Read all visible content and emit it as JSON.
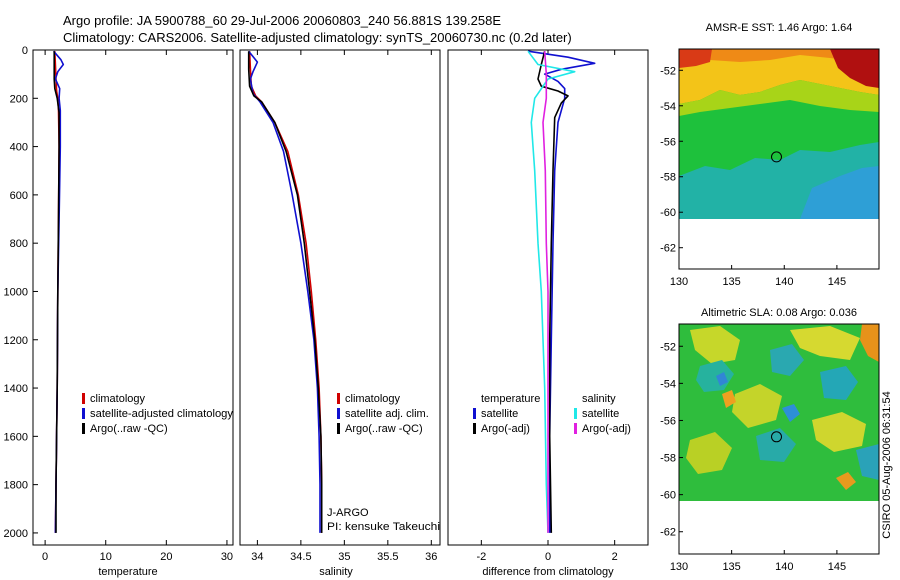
{
  "header": {
    "line1": "Argo profile: JA 5900788_60 29-Jul-2006 20060803_240 56.881S 139.258E",
    "line2": "Climatology: CARS2006. Satellite-adjusted climatology: synTS_20060730.nc (0.2d later)"
  },
  "credit": "CSIRO 05-Aug-2006 06:31:54",
  "colors": {
    "climatology": "#d00000",
    "satellite": "#1010d0",
    "argo": "#000000",
    "sat_salinity": "#20e8e8",
    "argo_salinity": "#e020e0"
  },
  "chart_data": [
    {
      "type": "line",
      "id": "temperature",
      "xlabel": "temperature",
      "ylabel": "depth",
      "xlim": [
        -2,
        31
      ],
      "ylim": [
        2050,
        0
      ],
      "xticks": [
        0,
        10,
        20,
        30
      ],
      "yticks": [
        0,
        200,
        400,
        600,
        800,
        1000,
        1200,
        1400,
        1600,
        1800,
        2000
      ],
      "legend": [
        "climatology",
        "satellite-adjusted climatology",
        "Argo(..raw -QC)"
      ],
      "series": [
        {
          "name": "climatology",
          "color": "#d00000",
          "points": [
            [
              1.6,
              5
            ],
            [
              1.7,
              60
            ],
            [
              1.8,
              120
            ],
            [
              1.9,
              170
            ],
            [
              2.1,
              200
            ],
            [
              2.2,
              250
            ],
            [
              2.3,
              400
            ],
            [
              2.2,
              700
            ],
            [
              2.1,
              1000
            ],
            [
              2.0,
              1400
            ],
            [
              1.8,
              1800
            ],
            [
              1.7,
              2000
            ]
          ]
        },
        {
          "name": "satellite-adjusted climatology",
          "color": "#1010d0",
          "points": [
            [
              1.4,
              5
            ],
            [
              2.6,
              40
            ],
            [
              3.0,
              60
            ],
            [
              2.1,
              90
            ],
            [
              1.7,
              120
            ],
            [
              2.4,
              160
            ],
            [
              2.3,
              200
            ],
            [
              2.5,
              250
            ],
            [
              2.5,
              400
            ],
            [
              2.3,
              700
            ],
            [
              2.1,
              1000
            ],
            [
              2.0,
              1400
            ],
            [
              1.8,
              1800
            ],
            [
              1.7,
              2000
            ]
          ]
        },
        {
          "name": "Argo(..raw -QC)",
          "color": "#000000",
          "points": [
            [
              1.5,
              5
            ],
            [
              1.5,
              60
            ],
            [
              1.5,
              120
            ],
            [
              1.6,
              160
            ],
            [
              2.0,
              200
            ],
            [
              2.3,
              260
            ],
            [
              2.3,
              400
            ],
            [
              2.2,
              700
            ],
            [
              2.1,
              1000
            ],
            [
              2.0,
              1400
            ],
            [
              1.8,
              1800
            ],
            [
              1.8,
              2000
            ]
          ]
        }
      ]
    },
    {
      "type": "line",
      "id": "salinity",
      "xlabel": "salinity",
      "xlim": [
        33.8,
        36.1
      ],
      "ylim": [
        2050,
        0
      ],
      "xticks": [
        34,
        34.5,
        35,
        35.5,
        36
      ],
      "legend": [
        "climatology",
        "satellite adj. clim.",
        "Argo(..raw -QC)"
      ],
      "annotation": [
        "J-ARGO",
        "PI: kensuke Takeuchi"
      ],
      "series": [
        {
          "name": "climatology",
          "color": "#d00000",
          "points": [
            [
              33.91,
              5
            ],
            [
              33.92,
              80
            ],
            [
              33.93,
              150
            ],
            [
              33.98,
              190
            ],
            [
              34.05,
              215
            ],
            [
              34.2,
              300
            ],
            [
              34.35,
              420
            ],
            [
              34.47,
              600
            ],
            [
              34.56,
              800
            ],
            [
              34.62,
              1000
            ],
            [
              34.67,
              1200
            ],
            [
              34.71,
              1400
            ],
            [
              34.73,
              1600
            ],
            [
              34.74,
              1800
            ],
            [
              34.74,
              2000
            ]
          ]
        },
        {
          "name": "satellite adj. clim.",
          "color": "#1010d0",
          "points": [
            [
              33.9,
              5
            ],
            [
              34.0,
              50
            ],
            [
              33.95,
              90
            ],
            [
              33.92,
              120
            ],
            [
              33.95,
              180
            ],
            [
              34.03,
              215
            ],
            [
              34.18,
              300
            ],
            [
              34.3,
              420
            ],
            [
              34.4,
              600
            ],
            [
              34.5,
              800
            ],
            [
              34.58,
              1000
            ],
            [
              34.65,
              1200
            ],
            [
              34.69,
              1400
            ],
            [
              34.71,
              1600
            ],
            [
              34.72,
              1800
            ],
            [
              34.72,
              2000
            ]
          ]
        },
        {
          "name": "Argo(..raw -QC)",
          "color": "#000000",
          "points": [
            [
              33.9,
              5
            ],
            [
              33.9,
              80
            ],
            [
              33.91,
              150
            ],
            [
              33.96,
              190
            ],
            [
              34.05,
              215
            ],
            [
              34.2,
              300
            ],
            [
              34.33,
              420
            ],
            [
              34.46,
              600
            ],
            [
              34.54,
              800
            ],
            [
              34.6,
              1000
            ],
            [
              34.66,
              1200
            ],
            [
              34.7,
              1400
            ],
            [
              34.73,
              1600
            ],
            [
              34.74,
              1800
            ],
            [
              34.74,
              2000
            ]
          ]
        }
      ]
    },
    {
      "type": "line",
      "id": "difference",
      "xlabel": "difference from climatology",
      "xlim": [
        -3,
        3
      ],
      "ylim": [
        2050,
        0
      ],
      "xticks": [
        -2,
        0,
        2
      ],
      "legend_temperature_heading": "temperature",
      "legend_salinity_heading": "salinity",
      "legend": [
        "satellite",
        "Argo(-adj)",
        "satellite",
        "Argo(-adj)"
      ],
      "series": [
        {
          "name": "temperature satellite",
          "color": "#1010d0",
          "points": [
            [
              -0.6,
              5
            ],
            [
              0.6,
              30
            ],
            [
              1.4,
              55
            ],
            [
              0.4,
              80
            ],
            [
              -0.1,
              100
            ],
            [
              0.3,
              130
            ],
            [
              0.5,
              160
            ],
            [
              0.5,
              200
            ],
            [
              0.3,
              300
            ],
            [
              0.2,
              500
            ],
            [
              0.15,
              800
            ],
            [
              0.1,
              1200
            ],
            [
              0.05,
              1600
            ],
            [
              0.05,
              2000
            ]
          ]
        },
        {
          "name": "temperature Argo(-adj)",
          "color": "#000000",
          "points": [
            [
              -0.1,
              5
            ],
            [
              -0.2,
              60
            ],
            [
              -0.3,
              120
            ],
            [
              -0.2,
              150
            ],
            [
              0.3,
              170
            ],
            [
              0.6,
              190
            ],
            [
              0.4,
              220
            ],
            [
              0.2,
              280
            ],
            [
              0.15,
              500
            ],
            [
              0.1,
              800
            ],
            [
              0.05,
              1200
            ],
            [
              0.05,
              1600
            ],
            [
              0.1,
              2000
            ]
          ]
        },
        {
          "name": "salinity satellite",
          "color": "#20e8e8",
          "points": [
            [
              -0.6,
              5
            ],
            [
              -0.3,
              60
            ],
            [
              0.8,
              90
            ],
            [
              0.0,
              120
            ],
            [
              -0.4,
              200
            ],
            [
              -0.5,
              300
            ],
            [
              -0.4,
              500
            ],
            [
              -0.3,
              800
            ],
            [
              -0.2,
              1000
            ],
            [
              -0.1,
              1400
            ],
            [
              -0.05,
              1800
            ],
            [
              0.0,
              2000
            ]
          ]
        },
        {
          "name": "salinity Argo(-adj)",
          "color": "#e020e0",
          "points": [
            [
              -0.1,
              5
            ],
            [
              -0.05,
              100
            ],
            [
              -0.05,
              200
            ],
            [
              -0.15,
              300
            ],
            [
              -0.08,
              500
            ],
            [
              -0.05,
              800
            ],
            [
              0.0,
              1000
            ],
            [
              0.0,
              1400
            ],
            [
              0.0,
              2000
            ]
          ]
        }
      ]
    },
    {
      "type": "heatmap",
      "id": "amsr-sst",
      "title": "AMSR-E SST: 1.46 Argo: 1.64",
      "xlim": [
        130,
        149
      ],
      "ylim": [
        -63.2,
        -50.8
      ],
      "xticks": [
        130,
        135,
        140,
        145
      ],
      "yticks": [
        -52,
        -54,
        -56,
        -58,
        -60,
        -62
      ],
      "data_extent_lat": [
        -60,
        -50.8
      ],
      "marker": {
        "lon": 139.258,
        "lat": -56.881
      }
    },
    {
      "type": "heatmap",
      "id": "altimetric-sla",
      "title": "Altimetric SLA: 0.08 Argo: 0.036",
      "xlim": [
        130,
        149
      ],
      "ylim": [
        -63.2,
        -50.8
      ],
      "xticks": [
        130,
        135,
        140,
        145
      ],
      "yticks": [
        -52,
        -54,
        -56,
        -58,
        -60,
        -62
      ],
      "data_extent_lat": [
        -60,
        -50.8
      ],
      "marker": {
        "lon": 139.258,
        "lat": -56.881
      }
    }
  ]
}
